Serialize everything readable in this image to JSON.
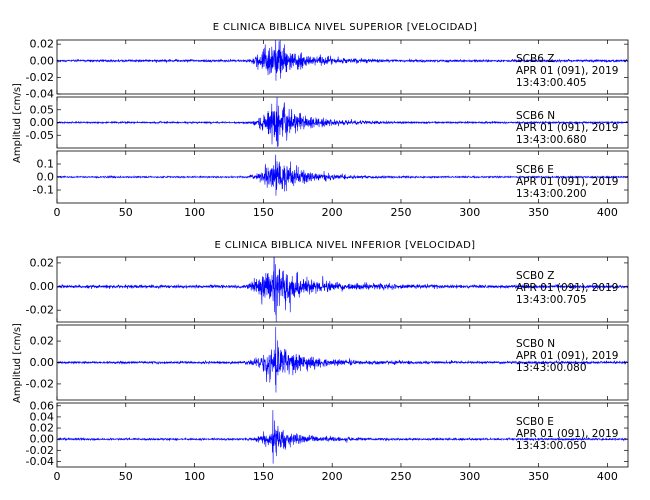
{
  "chart_data": {
    "type": "line",
    "xlim": [
      0,
      415
    ],
    "x_ticks": [
      "0",
      "50",
      "100",
      "150",
      "200",
      "250",
      "300",
      "350",
      "400"
    ],
    "trace_color": "#0000ff",
    "groups": [
      {
        "title": "E CLINICA BIBLICA NIVEL SUPERIOR [VELOCIDAD]",
        "ylabel": "Amplitud [cm/s]",
        "panels": [
          {
            "station": "SCB6",
            "component": "Z",
            "date": "APR 01 (091), 2019",
            "time": "13:43:00.405",
            "ylim": [
              -0.04,
              0.025
            ],
            "y_ticks": [
              "0.02",
              "0.00",
              "-0.02",
              "-0.04"
            ],
            "noise": 0.0012,
            "peak": 0.03,
            "bursts": [
              {
                "start": 136,
                "peak_t": 152,
                "decay": 22,
                "amp": 0.018
              },
              {
                "start": 156,
                "peak_t": 159,
                "decay": 10,
                "amp": 0.012
              }
            ]
          },
          {
            "station": "SCB6",
            "component": "N",
            "date": "APR 01 (091), 2019",
            "time": "13:43:00.680",
            "ylim": [
              -0.1,
              0.1
            ],
            "y_ticks": [
              "0.05",
              "0.00",
              "-0.05"
            ],
            "noise": 0.003,
            "peak": 0.12,
            "bursts": [
              {
                "start": 137,
                "peak_t": 156,
                "decay": 24,
                "amp": 0.05
              },
              {
                "start": 157,
                "peak_t": 160,
                "decay": 8,
                "amp": 0.04
              }
            ]
          },
          {
            "station": "SCB6",
            "component": "E",
            "date": "APR 01 (091), 2019",
            "time": "13:43:00.200",
            "ylim": [
              -0.2,
              0.2
            ],
            "y_ticks": [
              "0.1",
              "0.0",
              "-0.1"
            ],
            "noise": 0.005,
            "peak": 0.18,
            "bursts": [
              {
                "start": 137,
                "peak_t": 155,
                "decay": 24,
                "amp": 0.09
              },
              {
                "start": 156,
                "peak_t": 159,
                "decay": 9,
                "amp": 0.07
              }
            ]
          }
        ]
      },
      {
        "title": "E CLINICA BIBLICA NIVEL INFERIOR [VELOCIDAD]",
        "ylabel": "Amplitud [cm/s]",
        "panels": [
          {
            "station": "SCB0",
            "component": "Z",
            "date": "APR 01 (091), 2019",
            "time": "13:43:00.705",
            "ylim": [
              -0.03,
              0.025
            ],
            "y_ticks": [
              "0.02",
              "0.00",
              "-0.02"
            ],
            "noise": 0.0012,
            "peak": 0.027,
            "bursts": [
              {
                "start": 134,
                "peak_t": 152,
                "decay": 30,
                "amp": 0.012
              },
              {
                "start": 155,
                "peak_t": 158,
                "decay": 10,
                "amp": 0.01
              }
            ]
          },
          {
            "station": "SCB0",
            "component": "N",
            "date": "APR 01 (091), 2019",
            "time": "13:43:00.080",
            "ylim": [
              -0.035,
              0.035
            ],
            "y_ticks": [
              "0.02",
              "0.00",
              "-0.02"
            ],
            "noise": 0.001,
            "peak": 0.035,
            "bursts": [
              {
                "start": 135,
                "peak_t": 155,
                "decay": 26,
                "amp": 0.012
              },
              {
                "start": 156,
                "peak_t": 159,
                "decay": 8,
                "amp": 0.012
              }
            ]
          },
          {
            "station": "SCB0",
            "component": "E",
            "date": "APR 01 (091), 2019",
            "time": "13:43:00.050",
            "ylim": [
              -0.05,
              0.065
            ],
            "y_ticks": [
              "0.06",
              "0.04",
              "0.02",
              "0.00",
              "-0.02",
              "-0.04"
            ],
            "noise": 0.0015,
            "peak": 0.055,
            "bursts": [
              {
                "start": 137,
                "peak_t": 156,
                "decay": 22,
                "amp": 0.014
              },
              {
                "start": 155,
                "peak_t": 157,
                "decay": 6,
                "amp": 0.02
              }
            ]
          }
        ]
      }
    ]
  }
}
